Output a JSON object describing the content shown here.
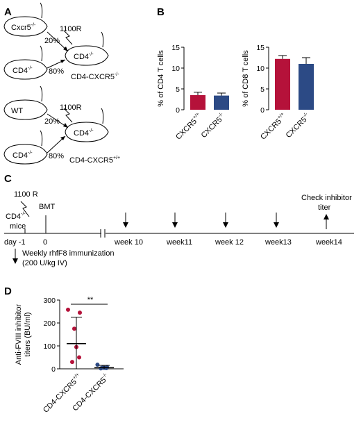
{
  "panels": [
    "A",
    "B",
    "C",
    "D"
  ],
  "panel_a": {
    "top": {
      "donor_1": "Cxcr5",
      "donor_1_sup": "-/-",
      "donor_1_pct": "20%",
      "donor_2": "CD4",
      "donor_2_sup": "-/-",
      "donor_2_pct": "80%",
      "irradiation": "1100R",
      "recipient": "CD4",
      "recipient_sup": "-/-",
      "result": "CD4-CXCR5",
      "result_sup": "-/-"
    },
    "bottom": {
      "donor_1": "WT",
      "donor_1_pct": "20%",
      "donor_2": "CD4",
      "donor_2_sup": "-/-",
      "donor_2_pct": "80%",
      "irradiation": "1100R",
      "recipient": "CD4",
      "recipient_sup": "-/-",
      "result": "CD4-CXCR5",
      "result_sup": "+/+"
    }
  },
  "panel_c": {
    "irradiation": "1100 R",
    "mice_label": "CD4",
    "mice_sup": "-/-",
    "mice_word": "mice",
    "bmt": "BMT",
    "day_label": "day -1",
    "zero": "0",
    "weeks": [
      "week 10",
      "week11",
      "week 12",
      "week13",
      "week14"
    ],
    "check": [
      "Check inhibitor",
      "titer"
    ],
    "immunization": [
      "Weekly rhfF8 immunization",
      "(200 U/kg IV)"
    ]
  },
  "chart_data": [
    {
      "panel": "B",
      "type": "bar",
      "ylabel": "% of CD4 T cells",
      "categories": [
        "CXCR5+/+",
        "CXCR5-/-"
      ],
      "category_base": [
        "CXCR5",
        "CXCR5"
      ],
      "category_sup": [
        "+/+",
        "-/-"
      ],
      "values": [
        3.5,
        3.4
      ],
      "errors": [
        0.7,
        0.6
      ],
      "colors": [
        "#b5123a",
        "#2c4a85"
      ],
      "ylim": [
        0,
        15
      ],
      "yticks": [
        0,
        5,
        10,
        15
      ]
    },
    {
      "panel": "B",
      "type": "bar",
      "ylabel": "% of CD8 T cells",
      "categories": [
        "CXCR5+/+",
        "CXCR5-/-"
      ],
      "category_base": [
        "CXCR5",
        "CXCR5"
      ],
      "category_sup": [
        "+/+",
        "-/-"
      ],
      "values": [
        12.2,
        11.0
      ],
      "errors": [
        0.8,
        1.5
      ],
      "colors": [
        "#b5123a",
        "#2c4a85"
      ],
      "ylim": [
        0,
        15
      ],
      "yticks": [
        0,
        5,
        10,
        15
      ]
    },
    {
      "panel": "D",
      "type": "scatter",
      "ylabel_lines": [
        "Anti-FVIII inhibitor",
        "titers (BU/ml)"
      ],
      "categories": [
        "CD4-CXCR5+/+",
        "CD4-CXCR5-/-"
      ],
      "category_base": [
        "CD4-CXCR5",
        "CD4-CXCR5"
      ],
      "category_sup": [
        "+/+",
        "-/-"
      ],
      "groups": [
        {
          "values": [
            258,
            245,
            175,
            95,
            50,
            30
          ],
          "mean": 110,
          "sd_upper": 225,
          "sd_lower": 0,
          "color": "#b5123a"
        },
        {
          "values": [
            18,
            8,
            5,
            4,
            3,
            2
          ],
          "mean": 5,
          "sd_upper": 15,
          "sd_lower": 0,
          "color": "#2c4a85"
        }
      ],
      "ylim": [
        0,
        300
      ],
      "yticks": [
        0,
        100,
        200,
        300
      ],
      "significance": "**"
    }
  ]
}
